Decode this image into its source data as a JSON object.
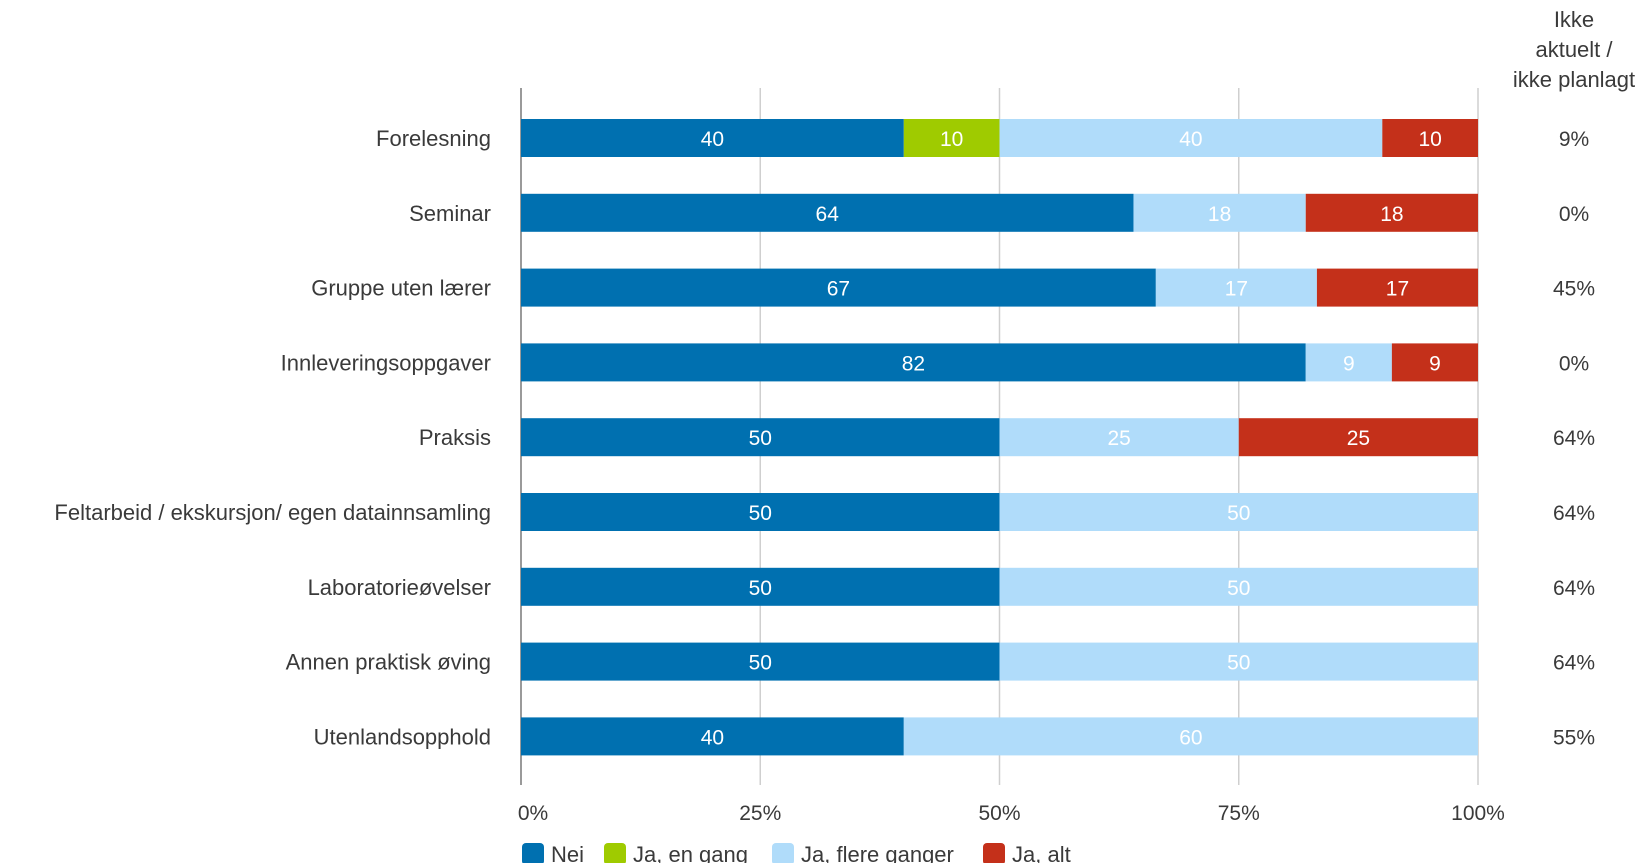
{
  "chart_data": {
    "type": "bar",
    "orientation": "horizontal",
    "stacked": true,
    "normalized": true,
    "categories": [
      "Forelesning",
      "Seminar",
      "Gruppe uten lærer",
      "Innleveringsoppgaver",
      "Praksis",
      "Feltarbeid / ekskursjon/ egen datainnsamling",
      "Laboratorieøvelser",
      "Annen praktisk øving",
      "Utenlandsopphold"
    ],
    "series": [
      {
        "name": "Nei",
        "color": "#0070b0",
        "values": [
          40,
          64,
          67,
          82,
          50,
          50,
          50,
          50,
          40
        ]
      },
      {
        "name": "Ja, en gang",
        "color": "#9fcb00",
        "values": [
          10,
          0,
          0,
          0,
          0,
          0,
          0,
          0,
          0
        ]
      },
      {
        "name": "Ja, flere ganger",
        "color": "#b0dcfa",
        "values": [
          40,
          18,
          17,
          9,
          25,
          50,
          50,
          50,
          60
        ]
      },
      {
        "name": "Ja, alt",
        "color": "#c4301a",
        "values": [
          10,
          18,
          17,
          9,
          25,
          0,
          0,
          0,
          0
        ]
      }
    ],
    "side_column": {
      "header": [
        "Ikke",
        "aktuelt /",
        "ikke planlagt"
      ],
      "values": [
        "9%",
        "0%",
        "45%",
        "0%",
        "64%",
        "64%",
        "64%",
        "64%",
        "55%"
      ]
    },
    "x_ticks": [
      "0%",
      "25%",
      "50%",
      "75%",
      "100%"
    ],
    "xlim": [
      0,
      100
    ],
    "grid": true,
    "legend_position": "bottom"
  }
}
